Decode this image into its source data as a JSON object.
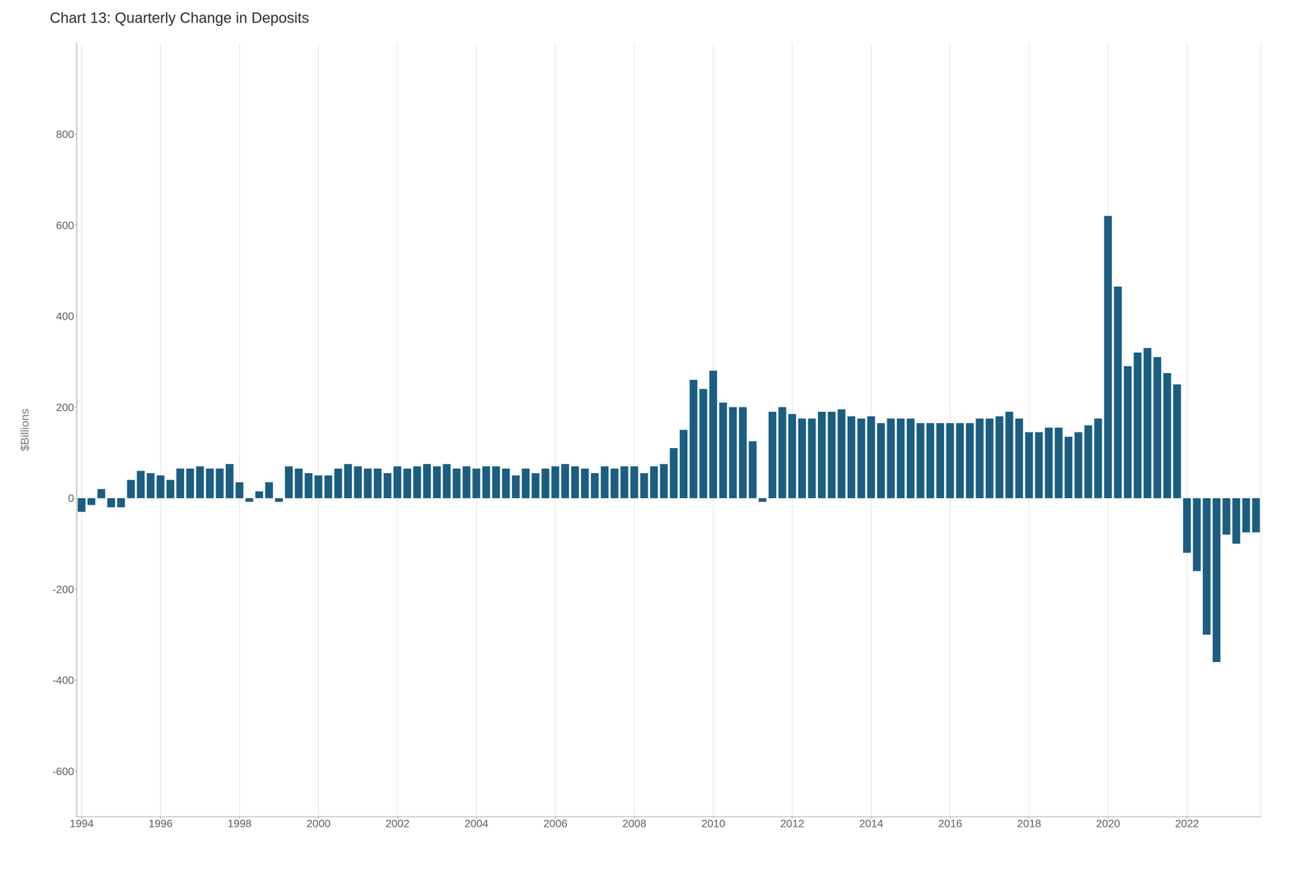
{
  "chart_data": {
    "type": "bar",
    "title": "Chart 13: Quarterly Change in Deposits",
    "y_label": "$Billions",
    "color": "#1b5e82",
    "grid": true,
    "ylim": [
      -700,
      1000
    ],
    "yticks": [
      -600,
      -400,
      -200,
      0,
      200,
      400,
      600,
      800
    ],
    "categories": [
      "1994",
      null,
      null,
      null,
      null,
      null,
      null,
      null,
      "1996",
      null,
      null,
      null,
      null,
      null,
      null,
      null,
      "1998",
      null,
      null,
      null,
      null,
      null,
      null,
      null,
      "2000",
      null,
      null,
      null,
      null,
      null,
      null,
      null,
      "2002",
      null,
      null,
      null,
      null,
      null,
      null,
      null,
      "2004",
      null,
      null,
      null,
      null,
      null,
      null,
      null,
      "2006",
      null,
      null,
      null,
      null,
      null,
      null,
      null,
      "2008",
      null,
      null,
      null,
      null,
      null,
      null,
      null,
      "2010",
      null,
      null,
      null,
      null,
      null,
      null,
      null,
      "2012",
      null,
      null,
      null,
      null,
      null,
      null,
      null,
      "2014",
      null,
      null,
      null,
      null,
      null,
      null,
      null,
      "2016",
      null,
      null,
      null,
      null,
      null,
      null,
      null,
      "2018",
      null,
      null,
      null,
      null,
      null,
      null,
      null,
      "2020",
      null,
      null,
      null,
      null,
      null,
      null,
      null,
      "2022",
      null,
      null,
      null,
      null,
      null,
      null,
      null
    ],
    "values": [
      -30,
      -15,
      20,
      -20,
      -20,
      40,
      60,
      55,
      50,
      40,
      65,
      65,
      70,
      65,
      65,
      75,
      35,
      -8,
      15,
      35,
      -8,
      70,
      65,
      55,
      50,
      50,
      65,
      75,
      70,
      65,
      65,
      55,
      70,
      65,
      70,
      75,
      70,
      75,
      65,
      70,
      65,
      70,
      70,
      65,
      50,
      65,
      55,
      65,
      70,
      75,
      70,
      65,
      55,
      70,
      65,
      70,
      70,
      55,
      70,
      75,
      110,
      150,
      260,
      240,
      280,
      210,
      200,
      200,
      125,
      -8,
      190,
      200,
      185,
      175,
      175,
      190,
      190,
      195,
      180,
      175,
      180,
      165,
      175,
      175,
      175,
      165,
      165,
      165,
      165,
      165,
      165,
      175,
      175,
      180,
      190,
      175,
      145,
      145,
      155,
      155,
      135,
      145,
      160,
      175,
      620,
      465,
      290,
      320,
      330,
      310,
      275,
      250,
      -120,
      -160,
      -300,
      -360,
      -80,
      -100,
      -75,
      -75
    ]
  }
}
